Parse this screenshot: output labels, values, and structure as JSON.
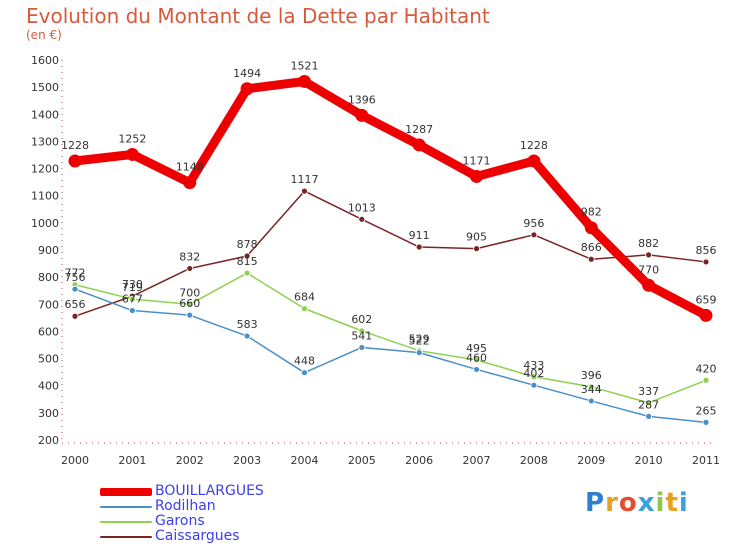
{
  "chart_data": {
    "type": "line",
    "title": "Evolution du Montant de la Dette par Habitant",
    "subtitle": "(en €)",
    "xlabel": "",
    "ylabel": "",
    "x": [
      "2000",
      "2001",
      "2002",
      "2003",
      "2004",
      "2005",
      "2006",
      "2007",
      "2008",
      "2009",
      "2010",
      "2011"
    ],
    "ylim": [
      200,
      1600
    ],
    "yticks": [
      "200",
      "300",
      "400",
      "500",
      "600",
      "700",
      "800",
      "900",
      "1000",
      "1100",
      "1200",
      "1300",
      "1400",
      "1500",
      "1600"
    ],
    "grid": false,
    "legend_position": "bottom-left",
    "series": [
      {
        "name": "Caissargues",
        "color": "#7a2424",
        "values": [
          656,
          730,
          832,
          878,
          1117,
          1013,
          911,
          905,
          956,
          866,
          882,
          856
        ]
      },
      {
        "name": "Garons",
        "color": "#8fd14f",
        "values": [
          772,
          719,
          700,
          815,
          684,
          602,
          529,
          495,
          433,
          396,
          337,
          420
        ]
      },
      {
        "name": "Rodilhan",
        "color": "#4a90c8",
        "values": [
          756,
          677,
          660,
          583,
          448,
          541,
          522,
          460,
          402,
          344,
          287,
          265
        ]
      },
      {
        "name": "BOUILLARGUES",
        "color": "#ee0000",
        "values": [
          1228,
          1252,
          1148,
          1494,
          1521,
          1396,
          1287,
          1171,
          1228,
          982,
          770,
          659
        ]
      }
    ],
    "legend_order": [
      "BOUILLARGUES",
      "Rodilhan",
      "Garons",
      "Caissargues"
    ]
  },
  "logo": {
    "letters": [
      "P",
      "r",
      "o",
      "x",
      "i",
      "t",
      "i"
    ],
    "colors": [
      "#2f7fd0",
      "#e8a020",
      "#e05030",
      "#3aa0e0",
      "#8cc84b",
      "#e8a020",
      "#3aa0e0"
    ]
  }
}
